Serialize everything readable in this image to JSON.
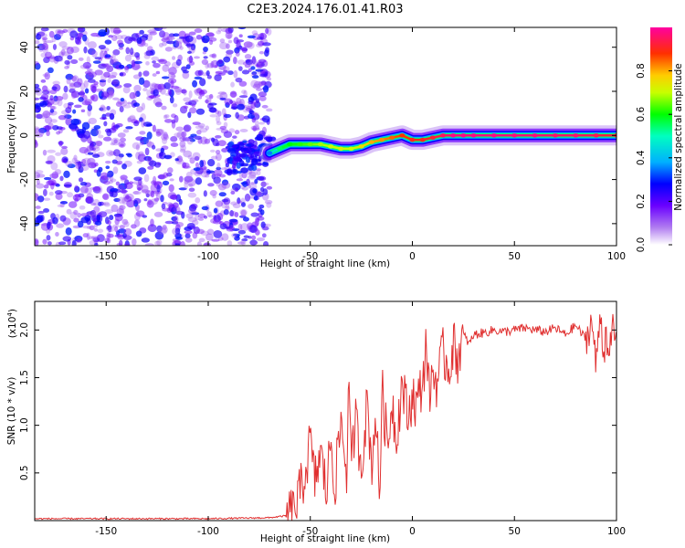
{
  "figure": {
    "title": "C2E3.2024.176.01.41.R03"
  },
  "chart_data": [
    {
      "type": "heatmap",
      "xlabel": "Height of straight line (km)",
      "ylabel": "Frequency (Hz)",
      "xlim": [
        -185,
        100
      ],
      "ylim": [
        -50,
        49
      ],
      "xticks": [
        -150,
        -100,
        -50,
        0,
        50,
        100
      ],
      "yticks": [
        -40,
        -20,
        0,
        20,
        40
      ],
      "grid": false,
      "noise_region_x": [
        -185,
        -70
      ],
      "noise_amplitude_range": [
        0.0,
        0.45
      ],
      "ridge": {
        "x": [
          -70,
          -65,
          -60,
          -55,
          -50,
          -45,
          -40,
          -35,
          -30,
          -25,
          -20,
          -15,
          -10,
          -5,
          0,
          5,
          10,
          15,
          20,
          25,
          30,
          40,
          50,
          60,
          70,
          80,
          90,
          100
        ],
        "y": [
          -8,
          -6,
          -4,
          -4,
          -4,
          -4,
          -5,
          -6,
          -6,
          -5,
          -3,
          -2,
          -1,
          0,
          -2,
          -2,
          -1,
          0,
          0,
          0,
          0,
          0,
          0,
          0,
          0,
          0,
          0,
          0
        ],
        "amplitude": [
          0.35,
          0.55,
          0.6,
          0.62,
          0.65,
          0.68,
          0.7,
          0.72,
          0.7,
          0.75,
          0.8,
          0.82,
          0.85,
          0.88,
          0.9,
          0.9,
          0.92,
          0.95,
          0.98,
          0.98,
          0.98,
          0.98,
          0.97,
          0.97,
          0.96,
          0.96,
          0.94,
          0.92
        ]
      },
      "colorbar": {
        "label": "Normalized spectral amplitude",
        "range": [
          0,
          1
        ],
        "ticks": [
          "0.0",
          "0.2",
          "0.4",
          "0.6",
          "0.8"
        ]
      }
    },
    {
      "type": "line",
      "xlabel": "Height of straight line (km)",
      "ylabel": "SNR (10 * v/v)",
      "y_multiplier": "(x10",
      "y_multiplier_exp": "4",
      "y_multiplier_close": ")",
      "xlim": [
        -185,
        100
      ],
      "ylim": [
        0,
        2.3
      ],
      "xticks": [
        -150,
        -100,
        -50,
        0,
        50,
        100
      ],
      "yticks": [
        "0.5",
        "1.0",
        "1.5",
        "2.0"
      ],
      "grid": false,
      "color": "#e03030",
      "series": [
        {
          "x": [
            -185,
            -150,
            -100,
            -70,
            -62,
            -58,
            -55,
            -52,
            -50,
            -48,
            -45,
            -42,
            -40,
            -38,
            -35,
            -32,
            -31,
            -30,
            -28,
            -25,
            -22,
            -20,
            -18,
            -16,
            -15,
            -12,
            -10,
            -8,
            -5,
            -2,
            0,
            2,
            5,
            7,
            8,
            10,
            12,
            15,
            18,
            20,
            22,
            25,
            28,
            30,
            35,
            40,
            45,
            50,
            55,
            60,
            65,
            70,
            75,
            80,
            85,
            88,
            90,
            92,
            94,
            95,
            96,
            98,
            100
          ],
          "y": [
            0.02,
            0.02,
            0.02,
            0.03,
            0.05,
            0.1,
            0.3,
            0.55,
            0.85,
            0.4,
            0.7,
            0.3,
            0.9,
            0.35,
            1.05,
            0.5,
            1.62,
            0.45,
            1.1,
            0.6,
            1.25,
            0.55,
            1.15,
            0.2,
            1.4,
            0.75,
            1.3,
            0.85,
            1.45,
            1.05,
            1.35,
            1.2,
            1.45,
            1.9,
            1.3,
            1.55,
            1.45,
            1.75,
            1.6,
            1.85,
            1.7,
            1.95,
            1.85,
            1.95,
            1.97,
            2.0,
            1.98,
            2.0,
            2.02,
            2.0,
            1.98,
            2.02,
            1.95,
            2.05,
            1.9,
            2.1,
            1.6,
            2.2,
            1.7,
            2.15,
            1.55,
            2.05,
            1.85
          ]
        }
      ]
    }
  ]
}
